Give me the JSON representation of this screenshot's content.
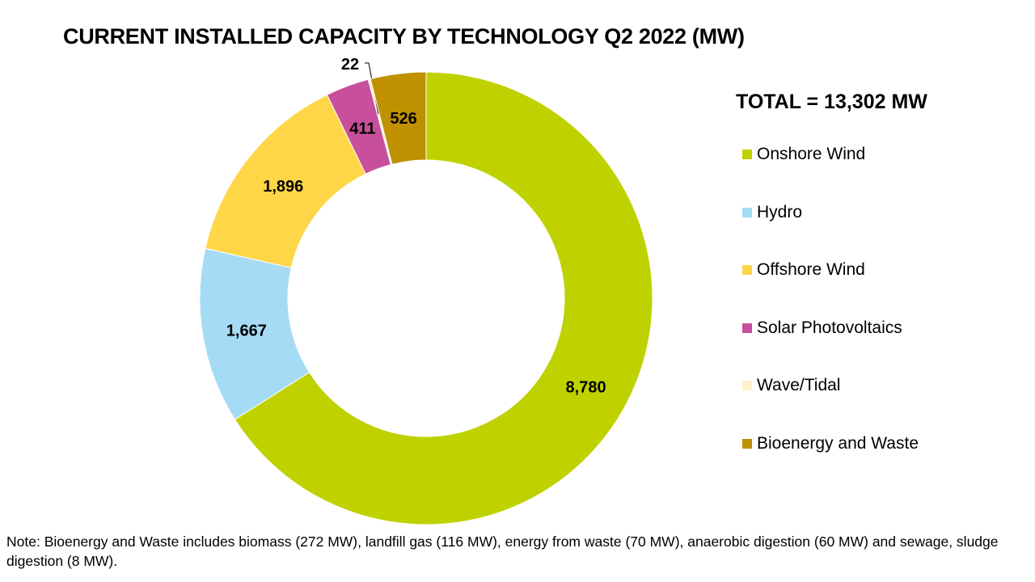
{
  "chart_data": {
    "type": "pie",
    "donut": true,
    "title": "CURRENT INSTALLED CAPACITY BY TECHNOLOGY Q2 2022 (MW)",
    "total_label": "TOTAL = 13,302 MW",
    "legend_position": "right",
    "slices": [
      {
        "name": "Onshore Wind",
        "value": 8780,
        "label": "8,780",
        "color": "#BFD200"
      },
      {
        "name": "Hydro",
        "value": 1667,
        "label": "1,667",
        "color": "#A6DBF5"
      },
      {
        "name": "Offshore Wind",
        "value": 1896,
        "label": "1,896",
        "color": "#FFD647"
      },
      {
        "name": "Solar Photovoltaics",
        "value": 411,
        "label": "411",
        "color": "#C74F9B"
      },
      {
        "name": "Wave/Tidal",
        "value": 22,
        "label": "22",
        "color": "#FFF2CC"
      },
      {
        "name": "Bioenergy and Waste",
        "value": 526,
        "label": "526",
        "color": "#BF9000"
      }
    ]
  },
  "note": "Note: Bioenergy and Waste includes biomass (272 MW), landfill gas (116 MW), energy from waste (70 MW), anaerobic digestion (60 MW) and sewage, sludge digestion (8 MW)."
}
